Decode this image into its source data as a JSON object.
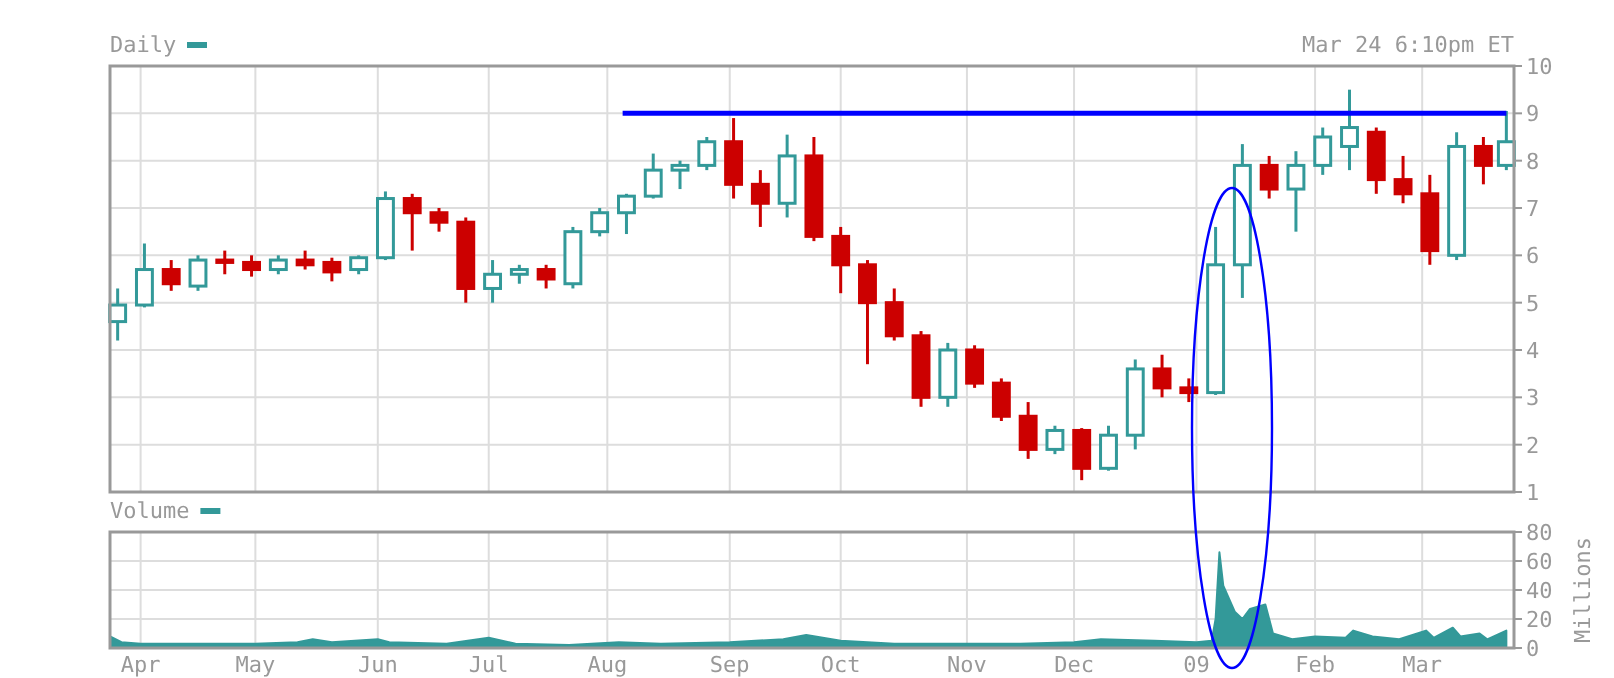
{
  "chart_data": [
    {
      "type": "candlestick",
      "title": "Daily",
      "annotations": [
        "Mar 24 6:10pm ET"
      ],
      "colors": [
        "#339999",
        "#339999",
        "#cc0000",
        "#339999",
        "#cc0000",
        "#cc0000",
        "#339999",
        "#cc0000",
        "#cc0000",
        "#339999",
        "#339999",
        "#cc0000",
        "#cc0000",
        "#cc0000",
        "#339999",
        "#339999",
        "#cc0000",
        "#339999",
        "#339999",
        "#339999",
        "#339999",
        "#339999",
        "#339999",
        "#cc0000",
        "#cc0000",
        "#339999",
        "#cc0000",
        "#cc0000",
        "#cc0000",
        "#cc0000",
        "#cc0000",
        "#339999",
        "#cc0000",
        "#cc0000",
        "#cc0000",
        "#339999",
        "#cc0000",
        "#339999",
        "#339999",
        "#cc0000",
        "#cc0000",
        "#339999",
        "#339999",
        "#cc0000",
        "#339999",
        "#339999",
        "#339999",
        "#cc0000",
        "#cc0000",
        "#cc0000",
        "#339999",
        "#cc0000",
        "#339999"
      ],
      "x": [
        "2008-03-26",
        "2008-04-02",
        "2008-04-09",
        "2008-04-16",
        "2008-04-23",
        "2008-04-30",
        "2008-05-07",
        "2008-05-14",
        "2008-05-21",
        "2008-05-28",
        "2008-06-04",
        "2008-06-11",
        "2008-06-18",
        "2008-06-25",
        "2008-07-02",
        "2008-07-09",
        "2008-07-16",
        "2008-07-23",
        "2008-07-30",
        "2008-08-06",
        "2008-08-13",
        "2008-08-20",
        "2008-08-27",
        "2008-09-03",
        "2008-09-10",
        "2008-09-17",
        "2008-09-24",
        "2008-10-01",
        "2008-10-08",
        "2008-10-15",
        "2008-10-22",
        "2008-10-29",
        "2008-11-05",
        "2008-11-12",
        "2008-11-19",
        "2008-11-26",
        "2008-12-03",
        "2008-12-10",
        "2008-12-17",
        "2008-12-24",
        "2008-12-31",
        "2009-01-07",
        "2009-01-14",
        "2009-01-21",
        "2009-01-28",
        "2009-02-04",
        "2009-02-11",
        "2009-02-18",
        "2009-02-25",
        "2009-03-04",
        "2009-03-11",
        "2009-03-18",
        "2009-03-24"
      ],
      "ohlc": [
        [
          4.6,
          5.3,
          4.2,
          4.95
        ],
        [
          4.95,
          6.25,
          4.9,
          5.7
        ],
        [
          5.7,
          5.9,
          5.25,
          5.4
        ],
        [
          5.35,
          6.0,
          5.25,
          5.9
        ],
        [
          5.9,
          6.1,
          5.6,
          5.85
        ],
        [
          5.85,
          6.0,
          5.55,
          5.7
        ],
        [
          5.7,
          6.0,
          5.6,
          5.9
        ],
        [
          5.9,
          6.1,
          5.7,
          5.8
        ],
        [
          5.85,
          5.95,
          5.45,
          5.65
        ],
        [
          5.7,
          6.0,
          5.6,
          5.95
        ],
        [
          5.95,
          7.35,
          5.9,
          7.2
        ],
        [
          7.2,
          7.3,
          6.1,
          6.9
        ],
        [
          6.9,
          7.0,
          6.5,
          6.7
        ],
        [
          6.7,
          6.8,
          5.0,
          5.3
        ],
        [
          5.3,
          5.9,
          5.0,
          5.6
        ],
        [
          5.6,
          5.8,
          5.4,
          5.7
        ],
        [
          5.7,
          5.8,
          5.3,
          5.5
        ],
        [
          5.4,
          6.6,
          5.3,
          6.5
        ],
        [
          6.5,
          7.0,
          6.4,
          6.9
        ],
        [
          6.9,
          7.3,
          6.45,
          7.25
        ],
        [
          7.25,
          8.15,
          7.2,
          7.8
        ],
        [
          7.8,
          8.0,
          7.4,
          7.9
        ],
        [
          7.9,
          8.5,
          7.8,
          8.4
        ],
        [
          8.4,
          8.9,
          7.2,
          7.5
        ],
        [
          7.5,
          7.8,
          6.6,
          7.1
        ],
        [
          7.1,
          8.55,
          6.8,
          8.1
        ],
        [
          8.1,
          8.5,
          6.3,
          6.4
        ],
        [
          6.4,
          6.6,
          5.2,
          5.8
        ],
        [
          5.8,
          5.9,
          3.7,
          5.0
        ],
        [
          5.0,
          5.3,
          4.2,
          4.3
        ],
        [
          4.3,
          4.4,
          2.8,
          3.0
        ],
        [
          3.0,
          4.15,
          2.8,
          4.0
        ],
        [
          4.0,
          4.1,
          3.2,
          3.3
        ],
        [
          3.3,
          3.4,
          2.5,
          2.6
        ],
        [
          2.6,
          2.9,
          1.7,
          1.9
        ],
        [
          1.9,
          2.4,
          1.8,
          2.3
        ],
        [
          2.3,
          2.35,
          1.25,
          1.5
        ],
        [
          1.5,
          2.4,
          1.45,
          2.2
        ],
        [
          2.2,
          3.8,
          1.9,
          3.6
        ],
        [
          3.6,
          3.9,
          3.0,
          3.2
        ],
        [
          3.2,
          3.4,
          2.9,
          3.1
        ],
        [
          3.1,
          6.6,
          3.05,
          5.8
        ],
        [
          5.8,
          8.35,
          5.1,
          7.9
        ],
        [
          7.9,
          8.1,
          7.2,
          7.4
        ],
        [
          7.4,
          8.2,
          6.5,
          7.9
        ],
        [
          7.9,
          8.7,
          7.7,
          8.5
        ],
        [
          8.3,
          9.5,
          7.8,
          8.7
        ],
        [
          8.6,
          8.7,
          7.3,
          7.6
        ],
        [
          7.6,
          8.1,
          7.1,
          7.3
        ],
        [
          7.3,
          7.7,
          5.8,
          6.1
        ],
        [
          6.0,
          8.6,
          5.9,
          8.3
        ],
        [
          8.3,
          8.5,
          7.5,
          7.9
        ],
        [
          7.9,
          9.05,
          7.8,
          8.4
        ]
      ],
      "series": [
        {
          "type": "line",
          "x": [
            "2008-08-05",
            "2009-03-24"
          ],
          "values": [
            9,
            9
          ],
          "color": "#0000ff"
        }
      ],
      "xlim": [
        "2008-03-24",
        "2009-03-26"
      ],
      "ylim": [
        1,
        10
      ],
      "yticks": [
        1,
        2,
        3,
        4,
        5,
        6,
        7,
        8,
        9,
        10
      ],
      "xticks": [
        {
          "value": "2008-04-01",
          "label": null
        },
        {
          "value": "2008-05-01",
          "label": null
        },
        {
          "value": "2008-06-02",
          "label": null
        },
        {
          "value": "2008-07-01",
          "label": null
        },
        {
          "value": "2008-08-01",
          "label": null
        },
        {
          "value": "2008-09-02",
          "label": null
        },
        {
          "value": "2008-10-01",
          "label": null
        },
        {
          "value": "2008-11-03",
          "label": null
        },
        {
          "value": "2008-12-01",
          "label": null
        },
        {
          "value": "2009-01-02",
          "label": null
        },
        {
          "value": "2009-02-02",
          "label": null
        },
        {
          "value": "2009-03-02",
          "label": null
        }
      ],
      "tick_labels": "y",
      "grid": true
    },
    {
      "type": "area",
      "title": "Volume",
      "ylabel": "Millions",
      "color": "#339999",
      "x": [
        "2008-03-24",
        "2008-03-27",
        "2008-04-01",
        "2008-04-15",
        "2008-05-01",
        "2008-05-12",
        "2008-05-16",
        "2008-05-21",
        "2008-06-02",
        "2008-06-05",
        "2008-06-20",
        "2008-07-01",
        "2008-07-08",
        "2008-07-22",
        "2008-08-04",
        "2008-08-15",
        "2008-09-02",
        "2008-09-16",
        "2008-09-22",
        "2008-10-01",
        "2008-10-15",
        "2008-11-03",
        "2008-11-17",
        "2008-12-01",
        "2008-12-08",
        "2008-12-22",
        "2009-01-02",
        "2009-01-06",
        "2009-01-07",
        "2009-01-08",
        "2009-01-09",
        "2009-01-12",
        "2009-01-14",
        "2009-01-16",
        "2009-01-20",
        "2009-01-22",
        "2009-01-27",
        "2009-02-02",
        "2009-02-10",
        "2009-02-12",
        "2009-02-17",
        "2009-02-24",
        "2009-03-03",
        "2009-03-05",
        "2009-03-10",
        "2009-03-12",
        "2009-03-17",
        "2009-03-19",
        "2009-03-24"
      ],
      "values": [
        8,
        4,
        3,
        3,
        3,
        4,
        6,
        4,
        6,
        4,
        3,
        7,
        3,
        2,
        4,
        3,
        4,
        6,
        9,
        5,
        3,
        3,
        3,
        4,
        6,
        5,
        4,
        5,
        20,
        66,
        43,
        25,
        20,
        27,
        30,
        10,
        6,
        8,
        7,
        12,
        8,
        6,
        12,
        7,
        14,
        8,
        10,
        6,
        12
      ],
      "xlim": [
        "2008-03-24",
        "2009-03-26"
      ],
      "ylim": [
        0,
        80
      ],
      "yticks": [
        0,
        20,
        40,
        60,
        80
      ],
      "xticks": [
        {
          "value": "2008-04-01",
          "label": "Apr"
        },
        {
          "value": "2008-05-01",
          "label": "May"
        },
        {
          "value": "2008-06-02",
          "label": "Jun"
        },
        {
          "value": "2008-07-01",
          "label": "Jul"
        },
        {
          "value": "2008-08-01",
          "label": "Aug"
        },
        {
          "value": "2008-09-02",
          "label": "Sep"
        },
        {
          "value": "2008-10-01",
          "label": "Oct"
        },
        {
          "value": "2008-11-03",
          "label": "Nov"
        },
        {
          "value": "2008-12-01",
          "label": "Dec"
        },
        {
          "value": "2009-01-02",
          "label": "09"
        },
        {
          "value": "2009-02-02",
          "label": "Feb"
        },
        {
          "value": "2009-03-02",
          "label": "Mar"
        }
      ],
      "grid": true
    }
  ]
}
